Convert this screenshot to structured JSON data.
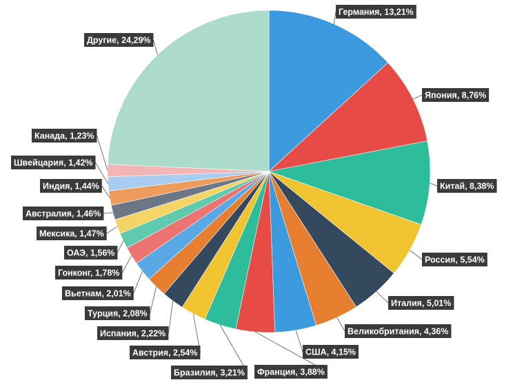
{
  "chart_data": {
    "type": "pie",
    "title": "",
    "legend": "none",
    "start": "top",
    "direction": "clockwise",
    "slices": [
      {
        "name": "Германия",
        "value": 13.21,
        "label": "Германия, 13,21%",
        "color": "#3b99dd"
      },
      {
        "name": "Япония",
        "value": 8.76,
        "label": "Япония, 8,76%",
        "color": "#e64c45"
      },
      {
        "name": "Китай",
        "value": 8.38,
        "label": "Китай, 8,38%",
        "color": "#2dbd9b"
      },
      {
        "name": "Россия",
        "value": 5.54,
        "label": "Россия, 5,54%",
        "color": "#f0c431"
      },
      {
        "name": "Италия",
        "value": 5.01,
        "label": "Италия, 5,01%",
        "color": "#34495e"
      },
      {
        "name": "Великобритания",
        "value": 4.36,
        "label": "Великобритания, 4,36%",
        "color": "#e67e30"
      },
      {
        "name": "США",
        "value": 4.15,
        "label": "США, 4,15%",
        "color": "#3b99dd"
      },
      {
        "name": "Франция",
        "value": 3.88,
        "label": "Франция, 3,88%",
        "color": "#e64c45"
      },
      {
        "name": "Бразилия",
        "value": 3.21,
        "label": "Бразилия, 3,21%",
        "color": "#2dbd9b"
      },
      {
        "name": "Австрия",
        "value": 2.54,
        "label": "Австрия, 2,54%",
        "color": "#f0c431"
      },
      {
        "name": "Испания",
        "value": 2.22,
        "label": "Испания, 2,22%",
        "color": "#34495e"
      },
      {
        "name": "Турция",
        "value": 2.08,
        "label": "Турция, 2,08%",
        "color": "#e67e30"
      },
      {
        "name": "Вьетнам",
        "value": 2.01,
        "label": "Вьетнам, 2,01%",
        "color": "#5aa9e6"
      },
      {
        "name": "Гонконг",
        "value": 1.78,
        "label": "Гонконг, 1,78%",
        "color": "#ec7370"
      },
      {
        "name": "ОАЭ",
        "value": 1.56,
        "label": "ОАЭ, 1,56%",
        "color": "#5fcaae"
      },
      {
        "name": "Мексика",
        "value": 1.47,
        "label": "Мексика, 1,47%",
        "color": "#f4d465"
      },
      {
        "name": "Австралия",
        "value": 1.46,
        "label": "Австралия, 1,46%",
        "color": "#6b7787"
      },
      {
        "name": "Индия",
        "value": 1.44,
        "label": "Индия, 1,44%",
        "color": "#ee9c5c"
      },
      {
        "name": "Швейцария",
        "value": 1.42,
        "label": "Швейцария, 1,42%",
        "color": "#a8cdf0"
      },
      {
        "name": "Канада",
        "value": 1.23,
        "label": "Канада, 1,23%",
        "color": "#f2b4b4"
      },
      {
        "name": "Другие",
        "value": 24.29,
        "label": "Другие, 24,29%",
        "color": "#acdbcb"
      }
    ]
  }
}
